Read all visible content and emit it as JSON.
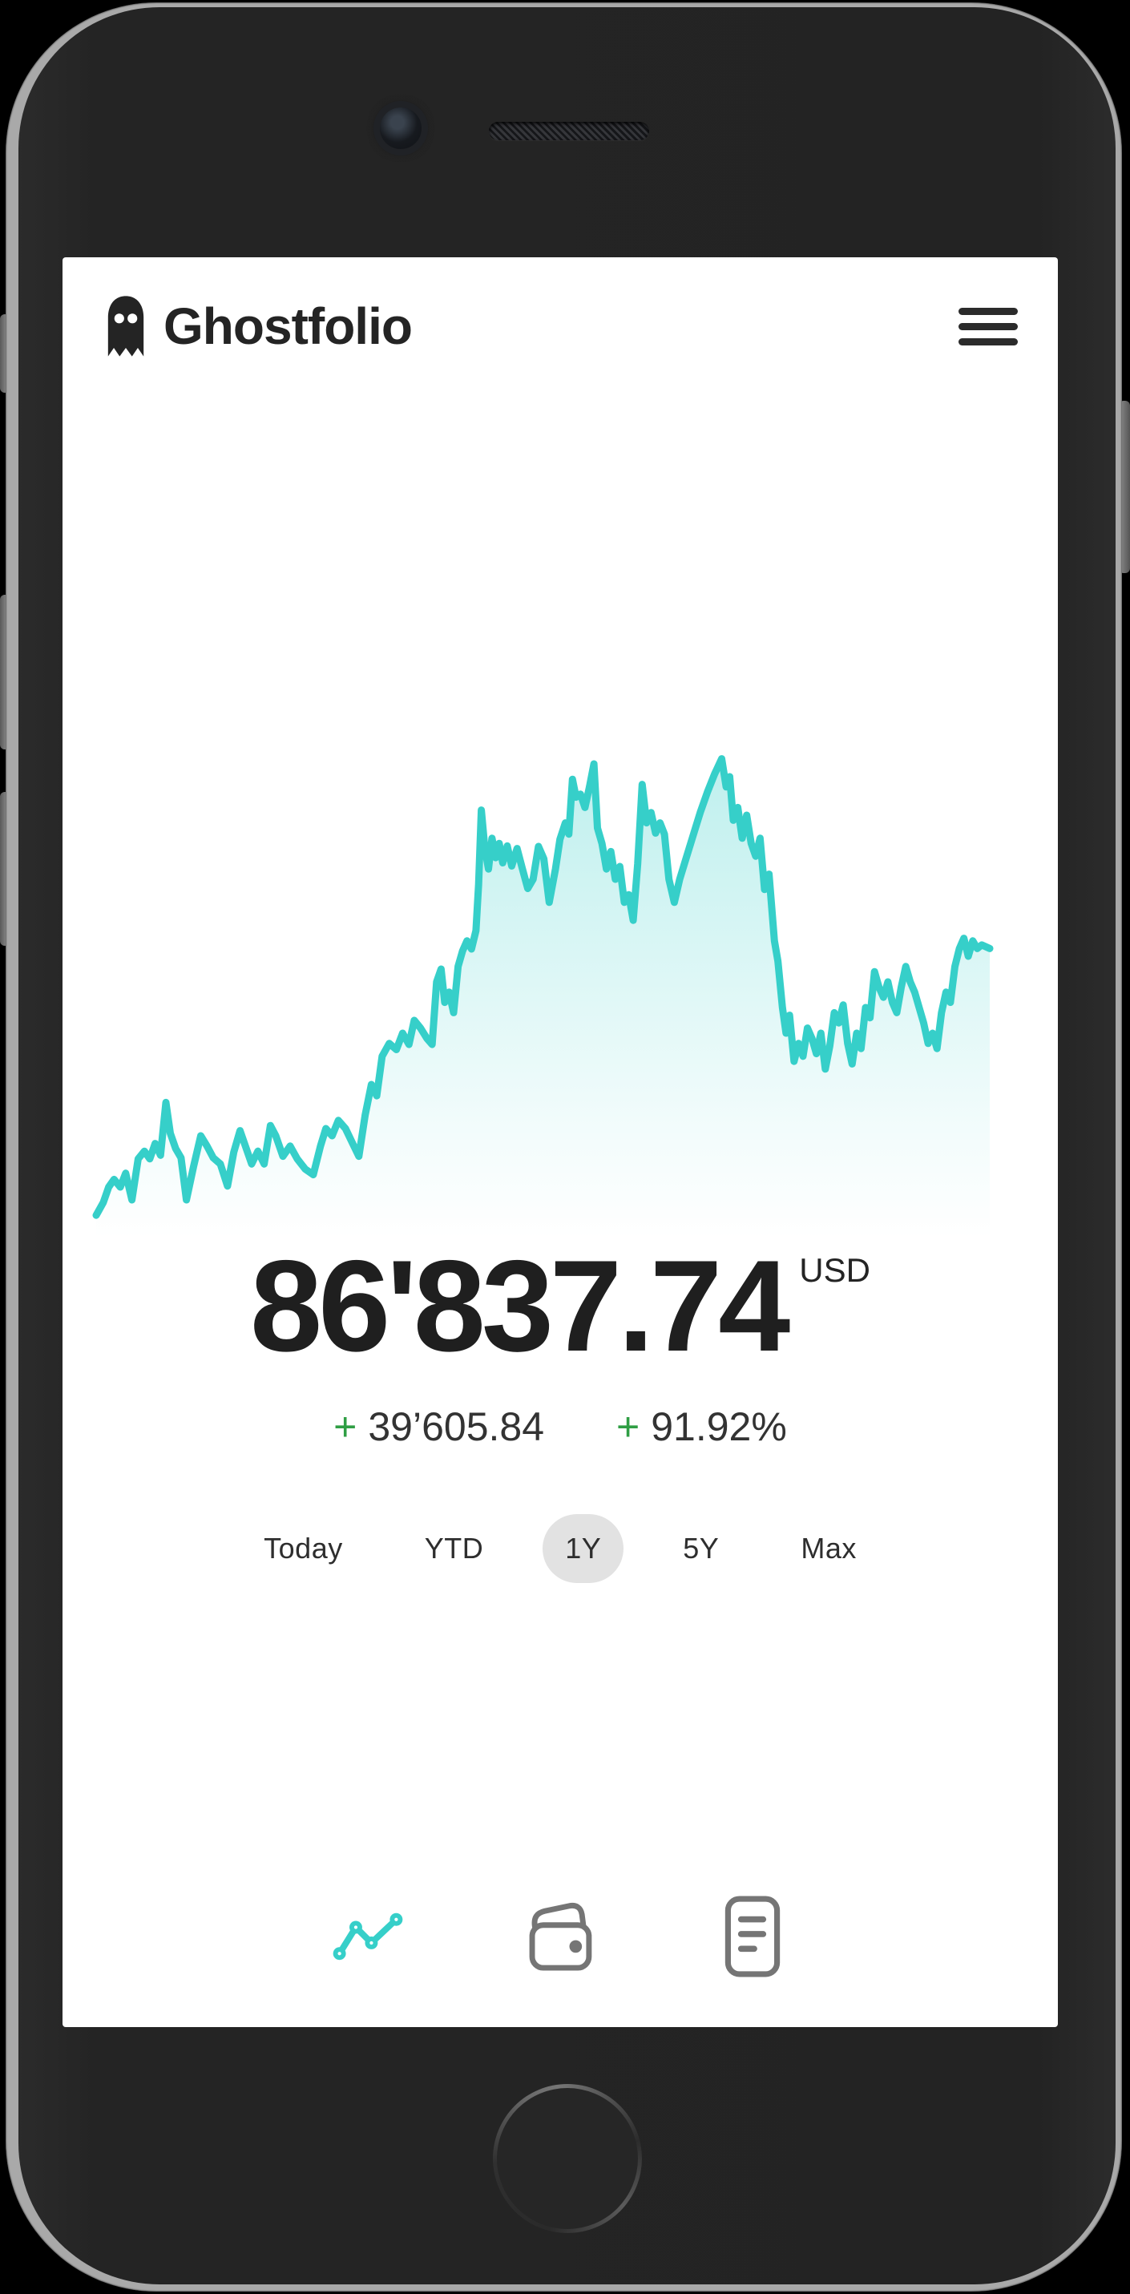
{
  "header": {
    "title": "Ghostfolio",
    "logo_icon": "ghost-icon",
    "menu_icon": "hamburger-icon"
  },
  "portfolio": {
    "value": "86'837.74",
    "currency": "USD",
    "change_amount_sign": "+",
    "change_amount": "39’605.84",
    "change_percent_sign": "+",
    "change_percent": "91.92%"
  },
  "range_selector": {
    "options": [
      {
        "label": "Today",
        "selected": false
      },
      {
        "label": "YTD",
        "selected": false
      },
      {
        "label": "1Y",
        "selected": true
      },
      {
        "label": "5Y",
        "selected": false
      },
      {
        "label": "Max",
        "selected": false
      }
    ]
  },
  "bottom_nav": {
    "items": [
      {
        "icon": "line-chart-icon",
        "active": true
      },
      {
        "icon": "wallet-icon",
        "active": false
      },
      {
        "icon": "report-icon",
        "active": false
      }
    ]
  },
  "colors": {
    "accent_teal": "#36cfc9",
    "positive_green": "#2f9e44",
    "text_dark": "#232323",
    "pill_gray": "#e2e2e2",
    "nav_inactive": "#757575"
  },
  "chart_data": {
    "type": "area",
    "period": "1Y",
    "currency": "USD",
    "start_value": 47231.9,
    "end_value": 86837.74,
    "estimated_peak_value": 115000,
    "estimated_low_value": 47000,
    "line_color": "#36cfc9",
    "axes_hidden": true,
    "legend": "none",
    "points_normalized": [
      [
        0.0,
        0.955
      ],
      [
        0.008,
        0.93
      ],
      [
        0.014,
        0.9
      ],
      [
        0.02,
        0.885
      ],
      [
        0.027,
        0.9
      ],
      [
        0.033,
        0.873
      ],
      [
        0.04,
        0.925
      ],
      [
        0.047,
        0.845
      ],
      [
        0.054,
        0.83
      ],
      [
        0.06,
        0.845
      ],
      [
        0.066,
        0.815
      ],
      [
        0.072,
        0.838
      ],
      [
        0.078,
        0.735
      ],
      [
        0.083,
        0.795
      ],
      [
        0.089,
        0.825
      ],
      [
        0.095,
        0.843
      ],
      [
        0.101,
        0.925
      ],
      [
        0.109,
        0.86
      ],
      [
        0.117,
        0.8
      ],
      [
        0.124,
        0.82
      ],
      [
        0.131,
        0.843
      ],
      [
        0.139,
        0.855
      ],
      [
        0.147,
        0.898
      ],
      [
        0.154,
        0.832
      ],
      [
        0.161,
        0.79
      ],
      [
        0.167,
        0.82
      ],
      [
        0.174,
        0.855
      ],
      [
        0.181,
        0.83
      ],
      [
        0.188,
        0.855
      ],
      [
        0.195,
        0.78
      ],
      [
        0.201,
        0.8
      ],
      [
        0.209,
        0.84
      ],
      [
        0.217,
        0.82
      ],
      [
        0.225,
        0.845
      ],
      [
        0.234,
        0.865
      ],
      [
        0.243,
        0.876
      ],
      [
        0.251,
        0.82
      ],
      [
        0.257,
        0.786
      ],
      [
        0.264,
        0.8
      ],
      [
        0.271,
        0.77
      ],
      [
        0.279,
        0.786
      ],
      [
        0.287,
        0.815
      ],
      [
        0.294,
        0.84
      ],
      [
        0.301,
        0.76
      ],
      [
        0.308,
        0.7
      ],
      [
        0.314,
        0.722
      ],
      [
        0.32,
        0.645
      ],
      [
        0.328,
        0.62
      ],
      [
        0.336,
        0.632
      ],
      [
        0.343,
        0.6
      ],
      [
        0.35,
        0.622
      ],
      [
        0.356,
        0.575
      ],
      [
        0.363,
        0.59
      ],
      [
        0.37,
        0.61
      ],
      [
        0.376,
        0.622
      ],
      [
        0.381,
        0.5
      ],
      [
        0.386,
        0.475
      ],
      [
        0.39,
        0.54
      ],
      [
        0.395,
        0.52
      ],
      [
        0.4,
        0.56
      ],
      [
        0.405,
        0.47
      ],
      [
        0.41,
        0.44
      ],
      [
        0.415,
        0.42
      ],
      [
        0.42,
        0.436
      ],
      [
        0.425,
        0.4
      ],
      [
        0.428,
        0.31
      ],
      [
        0.431,
        0.165
      ],
      [
        0.435,
        0.24
      ],
      [
        0.439,
        0.28
      ],
      [
        0.443,
        0.22
      ],
      [
        0.447,
        0.258
      ],
      [
        0.451,
        0.23
      ],
      [
        0.455,
        0.268
      ],
      [
        0.46,
        0.235
      ],
      [
        0.465,
        0.274
      ],
      [
        0.471,
        0.24
      ],
      [
        0.477,
        0.28
      ],
      [
        0.483,
        0.318
      ],
      [
        0.489,
        0.3
      ],
      [
        0.495,
        0.236
      ],
      [
        0.501,
        0.26
      ],
      [
        0.507,
        0.345
      ],
      [
        0.514,
        0.28
      ],
      [
        0.519,
        0.222
      ],
      [
        0.525,
        0.19
      ],
      [
        0.529,
        0.212
      ],
      [
        0.533,
        0.105
      ],
      [
        0.537,
        0.14
      ],
      [
        0.542,
        0.134
      ],
      [
        0.547,
        0.16
      ],
      [
        0.552,
        0.12
      ],
      [
        0.557,
        0.075
      ],
      [
        0.561,
        0.2
      ],
      [
        0.566,
        0.23
      ],
      [
        0.571,
        0.28
      ],
      [
        0.576,
        0.246
      ],
      [
        0.581,
        0.3
      ],
      [
        0.586,
        0.275
      ],
      [
        0.591,
        0.345
      ],
      [
        0.596,
        0.33
      ],
      [
        0.601,
        0.38
      ],
      [
        0.606,
        0.27
      ],
      [
        0.611,
        0.115
      ],
      [
        0.616,
        0.19
      ],
      [
        0.621,
        0.17
      ],
      [
        0.626,
        0.21
      ],
      [
        0.631,
        0.19
      ],
      [
        0.636,
        0.212
      ],
      [
        0.641,
        0.3
      ],
      [
        0.647,
        0.345
      ],
      [
        0.653,
        0.3
      ],
      [
        0.66,
        0.26
      ],
      [
        0.668,
        0.215
      ],
      [
        0.676,
        0.17
      ],
      [
        0.684,
        0.13
      ],
      [
        0.692,
        0.095
      ],
      [
        0.7,
        0.065
      ],
      [
        0.705,
        0.12
      ],
      [
        0.709,
        0.1
      ],
      [
        0.713,
        0.185
      ],
      [
        0.718,
        0.16
      ],
      [
        0.723,
        0.22
      ],
      [
        0.728,
        0.175
      ],
      [
        0.733,
        0.23
      ],
      [
        0.738,
        0.255
      ],
      [
        0.743,
        0.22
      ],
      [
        0.748,
        0.32
      ],
      [
        0.753,
        0.29
      ],
      [
        0.759,
        0.42
      ],
      [
        0.763,
        0.46
      ],
      [
        0.768,
        0.55
      ],
      [
        0.772,
        0.6
      ],
      [
        0.776,
        0.565
      ],
      [
        0.781,
        0.655
      ],
      [
        0.786,
        0.62
      ],
      [
        0.791,
        0.645
      ],
      [
        0.796,
        0.59
      ],
      [
        0.801,
        0.61
      ],
      [
        0.806,
        0.64
      ],
      [
        0.811,
        0.6
      ],
      [
        0.816,
        0.67
      ],
      [
        0.821,
        0.625
      ],
      [
        0.826,
        0.56
      ],
      [
        0.831,
        0.58
      ],
      [
        0.836,
        0.545
      ],
      [
        0.841,
        0.62
      ],
      [
        0.846,
        0.66
      ],
      [
        0.851,
        0.6
      ],
      [
        0.856,
        0.63
      ],
      [
        0.861,
        0.55
      ],
      [
        0.866,
        0.57
      ],
      [
        0.871,
        0.48
      ],
      [
        0.876,
        0.51
      ],
      [
        0.881,
        0.53
      ],
      [
        0.886,
        0.5
      ],
      [
        0.891,
        0.54
      ],
      [
        0.896,
        0.56
      ],
      [
        0.901,
        0.51
      ],
      [
        0.906,
        0.47
      ],
      [
        0.911,
        0.5
      ],
      [
        0.916,
        0.52
      ],
      [
        0.921,
        0.55
      ],
      [
        0.926,
        0.58
      ],
      [
        0.931,
        0.62
      ],
      [
        0.936,
        0.6
      ],
      [
        0.941,
        0.63
      ],
      [
        0.946,
        0.56
      ],
      [
        0.951,
        0.52
      ],
      [
        0.956,
        0.54
      ],
      [
        0.961,
        0.47
      ],
      [
        0.966,
        0.435
      ],
      [
        0.971,
        0.415
      ],
      [
        0.976,
        0.45
      ],
      [
        0.981,
        0.42
      ],
      [
        0.986,
        0.435
      ],
      [
        0.991,
        0.428
      ],
      [
        1.0,
        0.435
      ]
    ]
  }
}
